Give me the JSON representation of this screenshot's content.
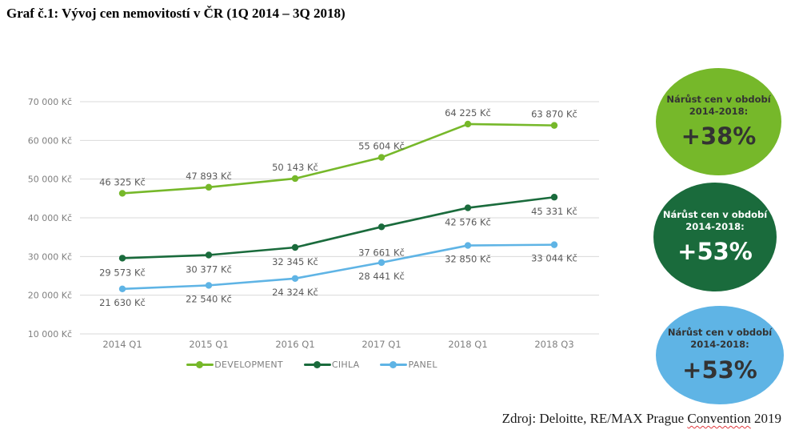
{
  "page": {
    "title": "Graf č.1: Vývoj cen nemovitostí v ČR (1Q 2014 – 3Q 2018)"
  },
  "chart_data": {
    "type": "line",
    "title": "Graf č.1: Vývoj cen nemovitostí v ČR (1Q 2014 – 3Q 2018)",
    "categories": [
      "2014 Q1",
      "2015 Q1",
      "2016 Q1",
      "2017 Q1",
      "2018 Q1",
      "2018 Q3"
    ],
    "series": [
      {
        "name": "DEVELOPMENT",
        "color": "#76b82a",
        "values": [
          46325,
          47893,
          50143,
          55604,
          64225,
          63870
        ],
        "labels": [
          "46 325 Kč",
          "47 893 Kč",
          "50 143 Kč",
          "55 604 Kč",
          "64 225 Kč",
          "63 870 Kč"
        ]
      },
      {
        "name": "CIHLA",
        "color": "#1a6b3c",
        "values": [
          29573,
          30377,
          32345,
          37661,
          42576,
          45331
        ],
        "labels": [
          "29 573 Kč",
          "30 377 Kč",
          "32 345 Kč",
          "37 661 Kč",
          "42 576 Kč",
          "45 331 Kč"
        ]
      },
      {
        "name": "PANEL",
        "color": "#5fb4e5",
        "values": [
          21630,
          22540,
          24324,
          28441,
          32850,
          33044
        ],
        "labels": [
          "21 630 Kč",
          "22 540 Kč",
          "24 324 Kč",
          "28 441 Kč",
          "32 850 Kč",
          "33 044 Kč"
        ]
      }
    ],
    "y_ticks": [
      "10 000 Kč",
      "20 000 Kč",
      "30 000 Kč",
      "40 000 Kč",
      "50 000 Kč",
      "60 000 Kč",
      "70 000 Kč"
    ],
    "ylim": [
      10000,
      70000
    ],
    "xlabel": "",
    "ylabel": "",
    "grid": true,
    "legend_position": "bottom"
  },
  "badges": [
    {
      "line1": "Nárůst cen v období",
      "line2": "2014-2018:",
      "value": "+38%",
      "bg": "#76b82a",
      "text": "#333333"
    },
    {
      "line1": "Nárůst cen v období",
      "line2": "2014-2018:",
      "value": "+53%",
      "bg": "#1a6b3c",
      "text": "#ffffff"
    },
    {
      "line1": "Nárůst cen v období",
      "line2": "2014-2018:",
      "value": "+53%",
      "bg": "#5fb4e5",
      "text": "#333333"
    }
  ],
  "source": {
    "prefix": "Zdroj: Deloitte, RE/MAX Prague ",
    "word": "Convention",
    "suffix": " 2019"
  }
}
